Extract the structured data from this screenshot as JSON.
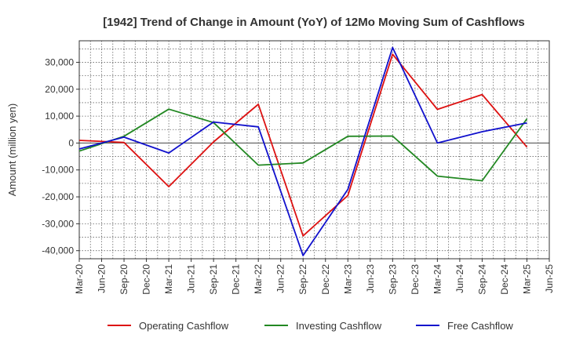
{
  "chart_data": {
    "type": "line",
    "title": "[1942]  Trend of Change in Amount (YoY) of 12Mo Moving Sum of Cashflows",
    "xlabel": "",
    "ylabel": "Amount (million yen)",
    "ylim": [
      -43000,
      38000
    ],
    "yticks": [
      30000,
      20000,
      10000,
      0,
      -10000,
      -20000,
      -30000,
      -40000
    ],
    "ytick_labels": [
      "30,000",
      "20,000",
      "10,000",
      "0",
      "-10,000",
      "-20,000",
      "-30,000",
      "-40,000"
    ],
    "x_tick_labels": [
      "Mar-20",
      "Jun-20",
      "Sep-20",
      "Dec-20",
      "Mar-21",
      "Jun-21",
      "Sep-21",
      "Dec-21",
      "Mar-22",
      "Jun-22",
      "Sep-22",
      "Dec-22",
      "Mar-23",
      "Jun-23",
      "Sep-23",
      "Dec-23",
      "Mar-24",
      "Jun-24",
      "Sep-24",
      "Dec-24",
      "Mar-25",
      "Jun-25"
    ],
    "categories": [
      "Mar-20",
      "Sep-20",
      "Mar-21",
      "Sep-21",
      "Mar-22",
      "Sep-22",
      "Mar-23",
      "Sep-23",
      "Mar-24",
      "Sep-24",
      "Mar-25"
    ],
    "series": [
      {
        "name": "Operating Cashflow",
        "color": "#dd1111",
        "values": [
          1000,
          200,
          -16200,
          400,
          14400,
          -34500,
          -19500,
          33000,
          12500,
          18000,
          -1500
        ]
      },
      {
        "name": "Investing Cashflow",
        "color": "#228822",
        "values": [
          -3000,
          2500,
          12600,
          7600,
          -8200,
          -7400,
          2500,
          2600,
          -12300,
          -14000,
          9000
        ]
      },
      {
        "name": "Free Cashflow",
        "color": "#1111cc",
        "values": [
          -2200,
          2200,
          -3700,
          7800,
          6000,
          -41800,
          -17200,
          35500,
          0,
          4200,
          7500
        ]
      }
    ],
    "legend_position": "bottom"
  }
}
